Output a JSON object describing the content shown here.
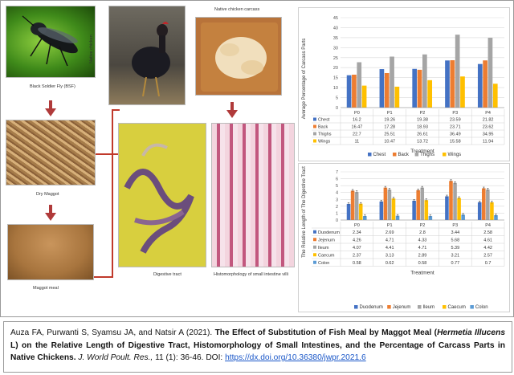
{
  "figure": {
    "panels": [
      {
        "caption": "Black Soldier Fly (BSF)"
      },
      {
        "caption": "Dry Maggot"
      },
      {
        "caption": "Maggot meal"
      },
      {
        "caption": "Native chicken"
      },
      {
        "caption": "Native chicken carcass"
      },
      {
        "caption": "Digestive tract"
      },
      {
        "caption": "Histomorphology of small intestine villi"
      }
    ]
  },
  "colors": {
    "P0": "#4472C4",
    "P1": "#ED7D31",
    "P2": "#A5A5A5",
    "P3": "#FFC000",
    "P4": "#5B9BD5"
  },
  "chart_data": [
    {
      "type": "bar",
      "ylabel": "Average Percentage of Carcass Parts",
      "xlabel": "Treatment",
      "ylim": [
        0,
        45
      ],
      "yticks": [
        0,
        5,
        10,
        15,
        20,
        25,
        30,
        35,
        40,
        45
      ],
      "categories": [
        "P0",
        "P1",
        "P2",
        "P3",
        "P4"
      ],
      "legend_position": "bottom",
      "series": [
        {
          "name": "Chest",
          "color": "#4472C4",
          "values": [
            16.2,
            19.26,
            19.38,
            23.59,
            21.82
          ],
          "labels": [
            "16.2",
            "19.26",
            "19.38",
            "23.59",
            "21.82"
          ]
        },
        {
          "name": "Back",
          "color": "#ED7D31",
          "values": [
            16.47,
            17.28,
            18.93,
            23.71,
            23.62
          ],
          "labels": [
            "16.47",
            "17.28",
            "18.93",
            "23.71",
            "23.62"
          ]
        },
        {
          "name": "Thighs",
          "color": "#A5A5A5",
          "values": [
            22.7,
            25.51,
            26.61,
            36.49,
            34.95
          ],
          "labels": [
            "22.7",
            "25.51",
            "26.61",
            "36.49",
            "34.95"
          ]
        },
        {
          "name": "Wings",
          "color": "#FFC000",
          "values": [
            11,
            10.47,
            13.72,
            15.58,
            11.94
          ],
          "labels": [
            "11",
            "10.47",
            "13.72",
            "15.58",
            "11.94"
          ]
        }
      ]
    },
    {
      "type": "bar",
      "ylabel": "The Relative Length of The Digestive Tract",
      "xlabel": "Treatment",
      "ylim": [
        0,
        7
      ],
      "yticks": [
        0,
        1,
        2,
        3,
        4,
        5,
        6,
        7
      ],
      "categories": [
        "P0",
        "P1",
        "P2",
        "P3",
        "P4"
      ],
      "legend_position": "bottom",
      "error_bars": true,
      "series": [
        {
          "name": "Duodenum",
          "color": "#4472C4",
          "values": [
            2.34,
            2.69,
            2.8,
            3.44,
            2.58
          ],
          "labels": [
            "2.34",
            "2.69",
            "2.8",
            "3.44",
            "2.58"
          ]
        },
        {
          "name": "Jejenum",
          "color": "#ED7D31",
          "values": [
            4.26,
            4.71,
            4.33,
            5.68,
            4.61
          ],
          "labels": [
            "4.26",
            "4.71",
            "4.33",
            "5.68",
            "4.61"
          ]
        },
        {
          "name": "Ileum",
          "color": "#A5A5A5",
          "values": [
            4.07,
            4.41,
            4.71,
            5.39,
            4.42
          ],
          "labels": [
            "4.07",
            "4.41",
            "4.71",
            "5.39",
            "4.42"
          ]
        },
        {
          "name": "Caecum",
          "color": "#FFC000",
          "values": [
            2.37,
            3.13,
            2.89,
            3.21,
            2.57
          ],
          "labels": [
            "2.37",
            "3.13",
            "2.89",
            "3.21",
            "2.57"
          ]
        },
        {
          "name": "Colon",
          "color": "#5B9BD5",
          "values": [
            0.58,
            0.62,
            0.58,
            0.77,
            0.7
          ],
          "labels": [
            "0.58",
            "0.62",
            "0.58",
            "0.77",
            "0.7"
          ]
        }
      ]
    }
  ],
  "citation": {
    "authors": "Auza FA, Purwanti S, Syamsu JA, and Natsir A (2021).",
    "title_part1": "The Effect of Substitution of Fish Meal by Maggot Meal (",
    "title_species": "Hermetia Illucens",
    "title_part2": " L) on the Relative Length of Digestive Tract, Histomorphology of Small Intestines, and the Percentage of Carcass Parts in Native Chickens.",
    "journal": "J. World Poult. Res.,",
    "volume": " 11 (1): 36-46. DOI: ",
    "doi": "https://dx.doi.org/10.36380/jwpr.2021.6"
  }
}
